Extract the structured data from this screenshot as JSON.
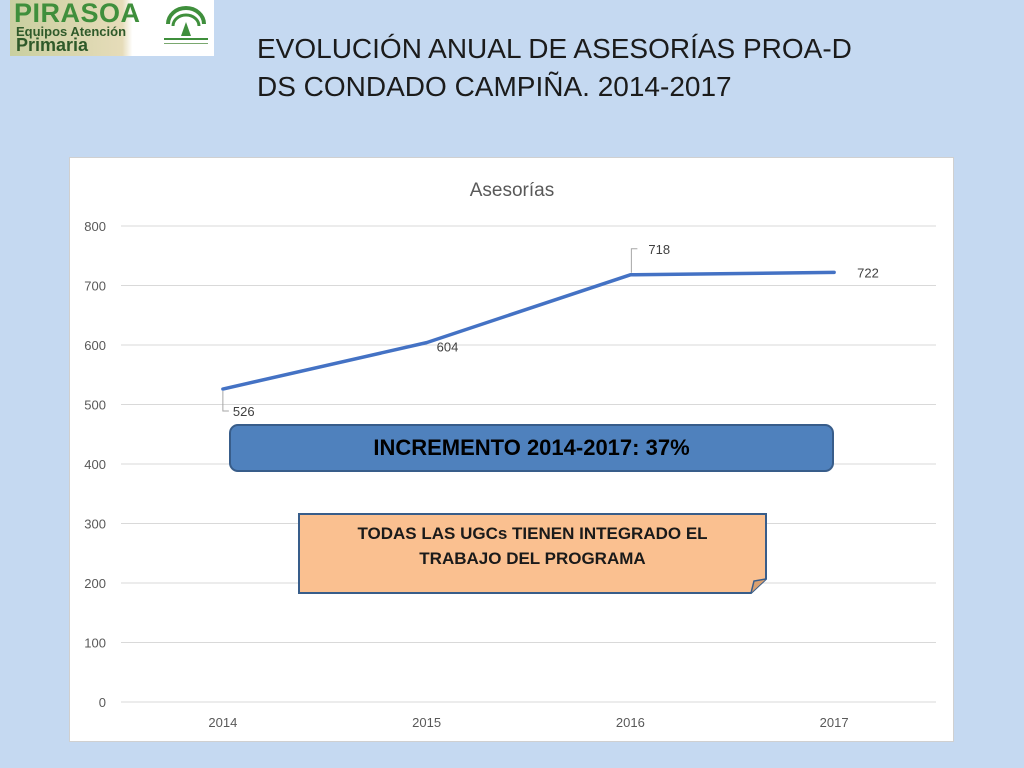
{
  "logo": {
    "brand": "PIRASOA",
    "sub1": "Equipos Atención",
    "sub2": "Primaria",
    "emblem_text": "JUNTA DE ANDALUCIA",
    "emblem_sub": "CONSEJERÍA DE SALUD Y BIENESTAR SOCIAL"
  },
  "title": {
    "line1": "EVOLUCIÓN ANUAL DE ASESORÍAS PROA-D",
    "line2": "DS CONDADO CAMPIÑA. 2014-2017"
  },
  "chart_data": {
    "type": "line",
    "title": "Asesorías",
    "categories": [
      "2014",
      "2015",
      "2016",
      "2017"
    ],
    "series": [
      {
        "values": [
          526,
          604,
          718,
          722
        ]
      }
    ],
    "ylim": [
      0,
      800
    ],
    "yticks": [
      0,
      100,
      200,
      300,
      400,
      500,
      600,
      700,
      800
    ],
    "grid": true,
    "colors": {
      "line": "#4472c4",
      "grid": "#d9d9d9",
      "text": "#595959"
    }
  },
  "callouts": {
    "increment": "INCREMENTO 2014-2017:  37%",
    "note_line1": "TODAS LAS UGCs TIENEN INTEGRADO EL",
    "note_line2": "TRABAJO DEL PROGRAMA"
  },
  "colors": {
    "background": "#c5d9f1",
    "callout_blue": "#4f81bd",
    "note_fill": "#fac090",
    "note_border": "#385d8a"
  }
}
